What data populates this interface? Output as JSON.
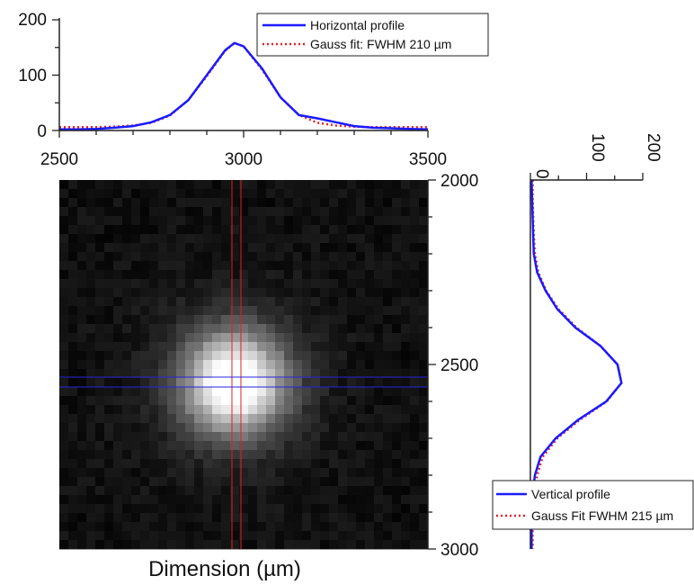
{
  "chart_data": [
    {
      "type": "line",
      "panel": "top",
      "xlim": [
        2500,
        3500
      ],
      "ylim": [
        0,
        200
      ],
      "yticks": [
        "0",
        "100",
        "200"
      ],
      "xticks": [
        "2500",
        "3000",
        "3500"
      ],
      "grid": false,
      "legend_position": "top-right",
      "series": [
        {
          "name": "Horizontal profile",
          "color": "#1a1aff",
          "style": "solid",
          "x": [
            2500,
            2550,
            2600,
            2650,
            2700,
            2750,
            2800,
            2850,
            2900,
            2950,
            2975,
            3000,
            3050,
            3100,
            3150,
            3200,
            3250,
            3300,
            3350,
            3400,
            3450,
            3500
          ],
          "y": [
            2,
            2,
            3,
            5,
            8,
            15,
            28,
            55,
            100,
            145,
            158,
            152,
            112,
            60,
            28,
            22,
            15,
            8,
            5,
            4,
            3,
            2
          ]
        },
        {
          "name": "Gauss fit: FWHM 210 µm",
          "color": "#e8202a",
          "style": "dotted",
          "x": [
            2500,
            2550,
            2600,
            2650,
            2700,
            2750,
            2800,
            2850,
            2900,
            2950,
            2975,
            3000,
            3050,
            3100,
            3150,
            3200,
            3250,
            3300,
            3350,
            3400,
            3450,
            3500
          ],
          "y": [
            6,
            6,
            6,
            7,
            9,
            14,
            27,
            55,
            98,
            144,
            158,
            152,
            110,
            60,
            28,
            14,
            9,
            7,
            6,
            6,
            6,
            6
          ]
        }
      ]
    },
    {
      "type": "heatmap",
      "panel": "main",
      "xlabel": "Dimension (µm)",
      "xlim": [
        2500,
        3500
      ],
      "ylim": [
        2000,
        3000
      ],
      "yticks": [
        "2000",
        "2500",
        "3000"
      ],
      "colormap": "grayscale",
      "peak_center": [
        2975,
        2550
      ],
      "crosshair_colors": {
        "vertical": "#e02020",
        "horizontal": "#2020e0"
      }
    },
    {
      "type": "line",
      "panel": "right",
      "orientation": "vertical",
      "xlim": [
        0,
        200
      ],
      "ylim": [
        2000,
        3000
      ],
      "xticks": [
        "0",
        "100",
        "200"
      ],
      "grid": false,
      "legend_position": "bottom",
      "series": [
        {
          "name": "Vertical profile",
          "color": "#1a1aff",
          "style": "solid",
          "depth": [
            2000,
            2050,
            2100,
            2150,
            2200,
            2250,
            2300,
            2350,
            2400,
            2450,
            2500,
            2550,
            2600,
            2650,
            2700,
            2750,
            2800,
            2850,
            2900,
            2950,
            3000
          ],
          "value": [
            2,
            3,
            4,
            5,
            6,
            12,
            27,
            48,
            80,
            125,
            155,
            162,
            135,
            85,
            45,
            18,
            8,
            4,
            3,
            2,
            2
          ]
        },
        {
          "name": "Gauss Fit FWHM 215 µm",
          "color": "#e8202a",
          "style": "dotted",
          "depth": [
            2000,
            2050,
            2100,
            2150,
            2200,
            2250,
            2300,
            2350,
            2400,
            2450,
            2500,
            2550,
            2600,
            2650,
            2700,
            2750,
            2800,
            2850,
            2900,
            2950,
            3000
          ],
          "value": [
            4,
            4,
            5,
            6,
            8,
            14,
            28,
            50,
            82,
            125,
            155,
            162,
            136,
            88,
            48,
            22,
            12,
            7,
            5,
            4,
            4
          ]
        }
      ]
    }
  ]
}
